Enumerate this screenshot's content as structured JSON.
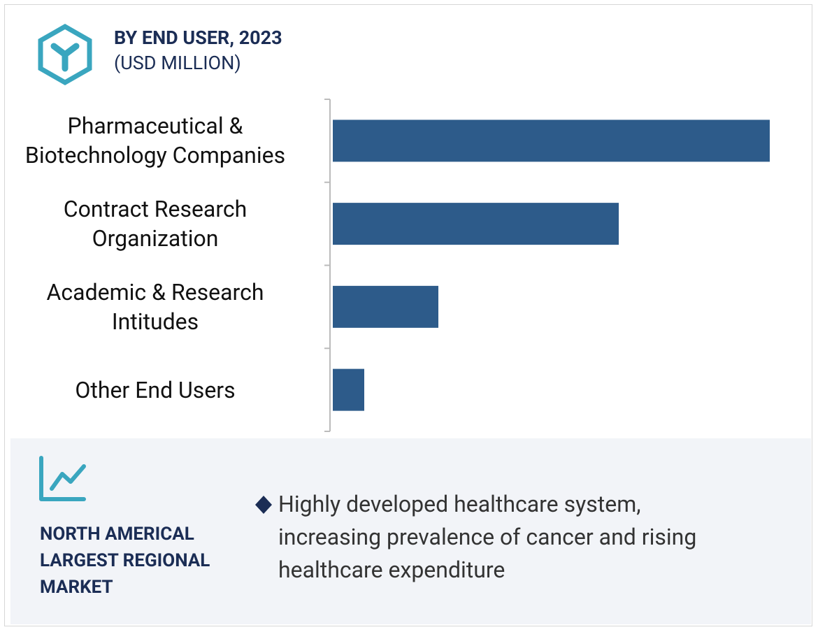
{
  "chart_data": {
    "type": "bar",
    "orientation": "horizontal",
    "title": "BY END USER, 2023",
    "subtitle": "(USD MILLION)",
    "categories": [
      "Pharmaceutical &\nBiotechnology Companies",
      "Contract Research\nOrganization",
      "Academic & Research\nIntitudes",
      "Other End Users"
    ],
    "values": [
      625,
      409,
      151,
      45
    ],
    "color": "#2d5b8a"
  },
  "callout": {
    "heading": "NORTH AMERICAL\nLARGEST REGIONAL\nMARKET",
    "bullets": [
      "Highly developed healthcare system,\nincreasing prevalence of cancer and rising\nhealthcare expenditure"
    ]
  }
}
